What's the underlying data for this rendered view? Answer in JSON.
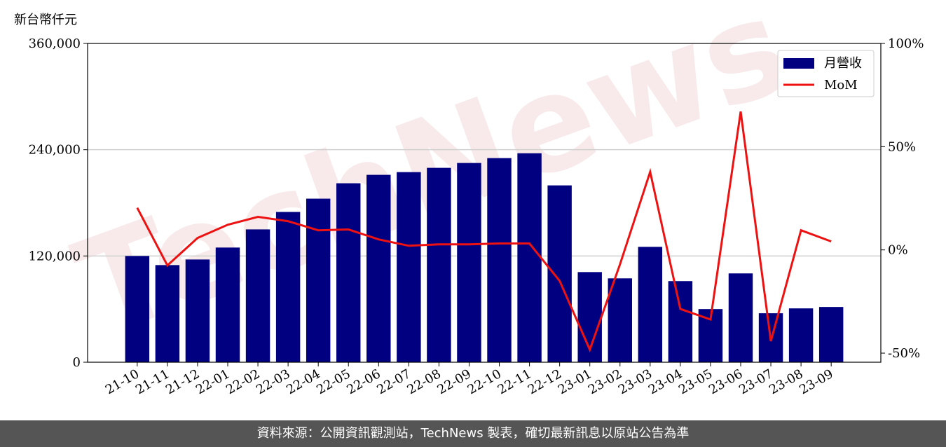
{
  "chart_data": {
    "type": "bar",
    "watermark": "TechNews",
    "y_label": "新台幣仟元",
    "categories": [
      "21-10",
      "21-11",
      "21-12",
      "22-01",
      "22-02",
      "22-03",
      "22-04",
      "22-05",
      "22-06",
      "22-07",
      "22-08",
      "22-09",
      "22-10",
      "22-11",
      "22-12",
      "23-01",
      "23-02",
      "23-03",
      "23-04",
      "23-05",
      "23-06",
      "23-07",
      "23-08",
      "23-09"
    ],
    "series": [
      {
        "name": "月營收",
        "type": "bar",
        "color": "#000080",
        "values": [
          120000,
          109700,
          116000,
          129500,
          150000,
          169700,
          184700,
          202100,
          211600,
          214700,
          219500,
          225000,
          230500,
          236000,
          199700,
          101800,
          94700,
          130300,
          91600,
          60000,
          100300,
          55300,
          60800,
          62400
        ]
      },
      {
        "name": "MoM",
        "type": "line",
        "axis": "y2",
        "color": "#ee1111",
        "values": [
          20.4,
          -7.5,
          5.8,
          12.2,
          16.0,
          13.9,
          9.5,
          9.9,
          5.1,
          2.0,
          2.7,
          2.7,
          3.1,
          3.1,
          -15.0,
          -48.3,
          -7.0,
          37.8,
          -28.6,
          -33.7,
          67.0,
          -44.2,
          9.5,
          4.1
        ]
      }
    ],
    "ylim": [
      0,
      360000
    ],
    "yticks": [
      0,
      {
        "value": 120000,
        "label": "120,000"
      },
      {
        "value": 240000,
        "label": "240,000"
      },
      {
        "value": 360000,
        "label": "360,000"
      }
    ],
    "y2lim": [
      -54.4,
      100
    ],
    "y2ticks": [
      {
        "value": 100,
        "label": "100%"
      },
      {
        "value": 50,
        "label": "50%"
      },
      {
        "value": 0,
        "label": "0%"
      },
      {
        "value": -50,
        "label": "-50%"
      }
    ],
    "grid": true,
    "legend_position": "upper right"
  },
  "footer": "資料來源：公開資訊觀測站，TechNews 製表，確切最新訊息以原站公告為準"
}
